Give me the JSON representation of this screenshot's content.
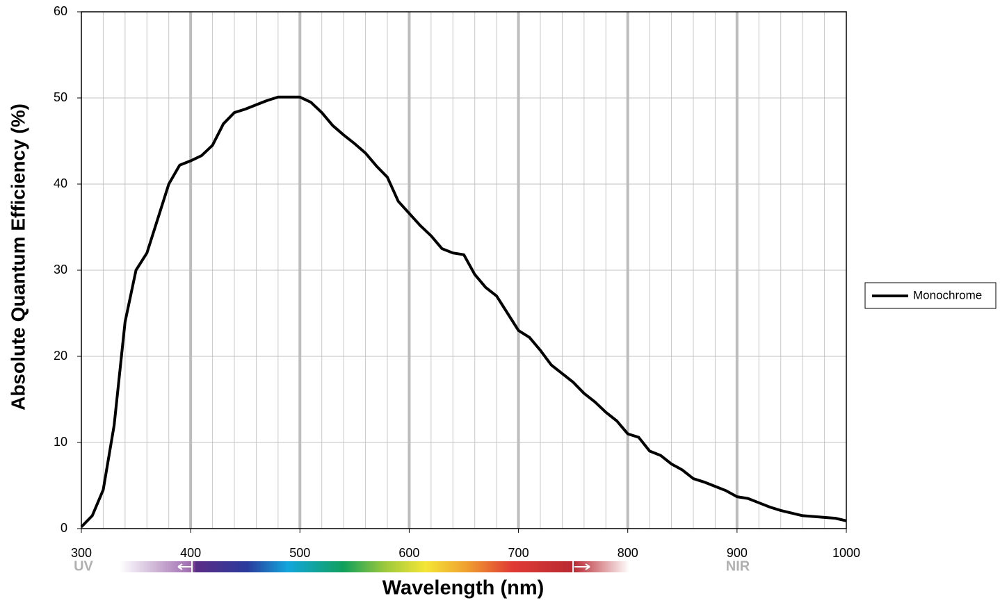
{
  "chart_data": {
    "type": "line",
    "x_label": "Wavelength (nm)",
    "y_label": "Absolute Quantum Efficiency (%)",
    "x": [
      300,
      310,
      320,
      330,
      340,
      350,
      360,
      370,
      380,
      390,
      400,
      410,
      420,
      430,
      440,
      450,
      460,
      470,
      480,
      490,
      500,
      510,
      520,
      530,
      540,
      550,
      560,
      570,
      580,
      590,
      600,
      610,
      620,
      630,
      640,
      650,
      660,
      670,
      680,
      690,
      700,
      710,
      720,
      730,
      740,
      750,
      760,
      770,
      780,
      790,
      800,
      810,
      820,
      830,
      840,
      850,
      860,
      870,
      880,
      890,
      900,
      910,
      920,
      930,
      940,
      950,
      960,
      970,
      980,
      990,
      1000
    ],
    "series": [
      {
        "name": "Monochrome",
        "color": "#000000",
        "values": [
          0.2,
          1.5,
          4.5,
          12,
          24,
          30,
          32,
          36,
          40,
          42.2,
          42.7,
          43.3,
          44.5,
          47,
          48.3,
          48.7,
          49.2,
          49.7,
          50.1,
          50.1,
          50.1,
          49.5,
          48.3,
          46.8,
          45.7,
          44.7,
          43.6,
          42.1,
          40.8,
          38,
          36.6,
          35.2,
          34,
          32.5,
          32,
          31.8,
          29.5,
          28,
          27,
          25,
          23,
          22.2,
          20.7,
          19,
          18,
          17,
          15.7,
          14.7,
          13.5,
          12.5,
          11,
          10.6,
          9,
          8.5,
          7.5,
          6.8,
          5.8,
          5.4,
          4.9,
          4.4,
          3.7,
          3.5,
          3,
          2.5,
          2.1,
          1.8,
          1.5,
          1.4,
          1.3,
          1.2,
          0.9
        ]
      }
    ],
    "xlim": [
      300,
      1000
    ],
    "ylim": [
      0,
      60
    ],
    "xticks": [
      300,
      400,
      500,
      600,
      700,
      800,
      900,
      1000
    ],
    "xminorticks": [
      320,
      340,
      360,
      380,
      420,
      440,
      460,
      480,
      520,
      540,
      560,
      580,
      620,
      640,
      660,
      680,
      720,
      740,
      760,
      780,
      820,
      840,
      860,
      880,
      920,
      940,
      960,
      980
    ],
    "yticks": [
      0,
      10,
      20,
      30,
      40,
      50,
      60
    ],
    "grid": true,
    "legend": "right",
    "annotations": [
      "UV",
      "NIR"
    ]
  }
}
